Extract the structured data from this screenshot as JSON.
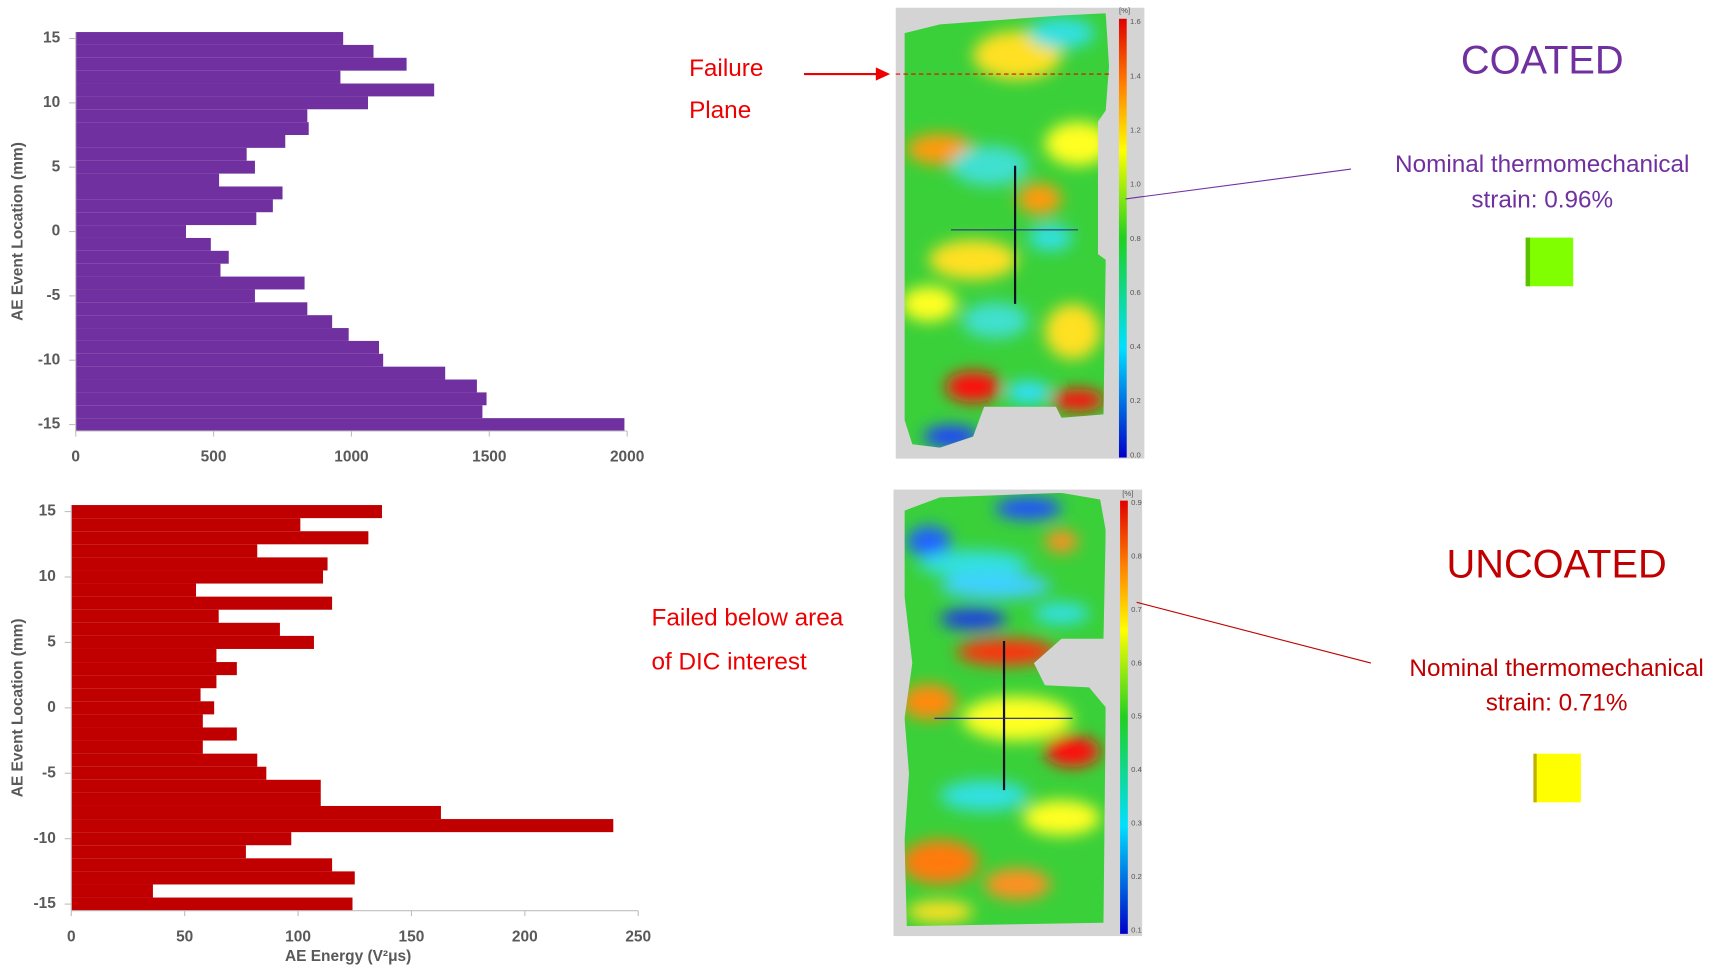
{
  "chart_data": [
    {
      "type": "hbar",
      "y_label": "AE Event Location (mm)",
      "color": "#7030a0",
      "y": [
        15,
        14,
        13,
        12,
        11,
        10,
        9,
        8,
        7,
        6,
        5,
        4,
        3,
        2,
        1,
        0,
        -1,
        -2,
        -3,
        -4,
        -5,
        -6,
        -7,
        -8,
        -9,
        -10,
        -11,
        -12,
        -13,
        -14,
        -15
      ],
      "values": [
        970,
        1080,
        1200,
        960,
        1300,
        1060,
        840,
        845,
        760,
        620,
        650,
        520,
        750,
        715,
        655,
        400,
        490,
        555,
        525,
        830,
        650,
        840,
        930,
        990,
        1100,
        1115,
        1340,
        1455,
        1490,
        1475,
        1990
      ],
      "xlim": [
        0,
        2000
      ],
      "xticks": [
        0,
        500,
        1000,
        1500,
        2000
      ],
      "ylim": [
        -15.5,
        15.5
      ],
      "yticks": [
        15,
        10,
        5,
        0,
        -5,
        -10,
        -15
      ]
    },
    {
      "type": "hbar",
      "y_label": "AE Event Location (mm)",
      "x_label": "AE Energy (V²μs)",
      "color": "#c00000",
      "y": [
        15,
        14,
        13,
        12,
        11,
        10,
        9,
        8,
        7,
        6,
        5,
        4,
        3,
        2,
        1,
        0,
        -1,
        -2,
        -3,
        -4,
        -5,
        -6,
        -7,
        -8,
        -9,
        -10,
        -11,
        -12,
        -13,
        -14,
        -15
      ],
      "values": [
        137,
        101,
        131,
        82,
        113,
        111,
        55,
        115,
        65,
        92,
        107,
        64,
        73,
        64,
        57,
        63,
        58,
        73,
        58,
        82,
        86,
        110,
        110,
        163,
        239,
        97,
        77,
        115,
        125,
        36,
        124
      ],
      "xlim": [
        0,
        250
      ],
      "xticks": [
        0,
        50,
        100,
        150,
        200,
        250
      ],
      "ylim": [
        -15.5,
        15.5
      ],
      "yticks": [
        15,
        10,
        5,
        0,
        -5,
        -10,
        -15
      ]
    }
  ],
  "annotations": {
    "failure_plane": [
      "Failure",
      "Plane"
    ],
    "coated": "COATED",
    "coated_strain": [
      "Nominal thermomechanical",
      "strain: 0.96%"
    ],
    "uncoated": "UNCOATED",
    "failed_below": [
      "Failed below area",
      "of DIC interest"
    ],
    "uncoated_strain": [
      "Nominal thermomechanical",
      "strain: 0.71%"
    ]
  },
  "colorbars": [
    {
      "unit": "[%]",
      "tick_labels": [
        "1.6",
        "1.4",
        "1.2",
        "1.0",
        "0.8",
        "0.6",
        "0.4",
        "0.2",
        "0.0"
      ]
    },
    {
      "unit": "[%]",
      "tick_labels": [
        "0.9",
        "0.8",
        "0.7",
        "0.6",
        "0.5",
        "0.4",
        "0.3",
        "0.2",
        "0.1"
      ]
    }
  ]
}
